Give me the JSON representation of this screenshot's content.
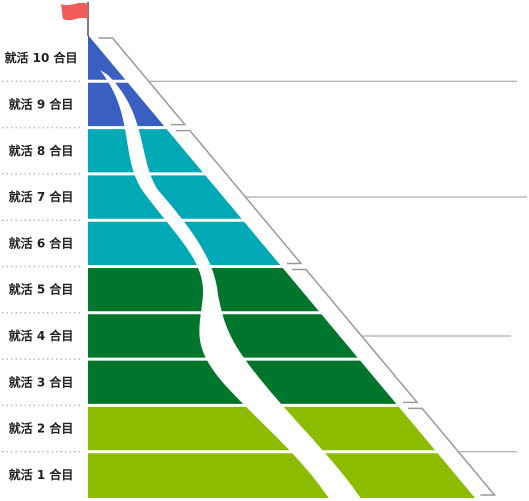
{
  "stages": [
    {
      "label": "就活 10 合目",
      "color": "#3a5fc2"
    },
    {
      "label": "就活 9 合目",
      "color": "#3a5fc2"
    },
    {
      "label": "就活 8 合目",
      "color": "#00a9b5"
    },
    {
      "label": "就活 7 合目",
      "color": "#00a9b5"
    },
    {
      "label": "就活 6 合目",
      "color": "#00a9b5"
    },
    {
      "label": "就活 5 合目",
      "color": "#00762c"
    },
    {
      "label": "就活 4 合目",
      "color": "#00762c"
    },
    {
      "label": "就活 3 合目",
      "color": "#00762c"
    },
    {
      "label": "就活 2 合目",
      "color": "#8cbc00"
    },
    {
      "label": "就活 1 合目",
      "color": "#8cbc00"
    }
  ],
  "flag_color": "#f05a5a",
  "path_color": "#ffffff",
  "bracket_color": "#9a9a9a",
  "separator_color": "#bdbdbd"
}
